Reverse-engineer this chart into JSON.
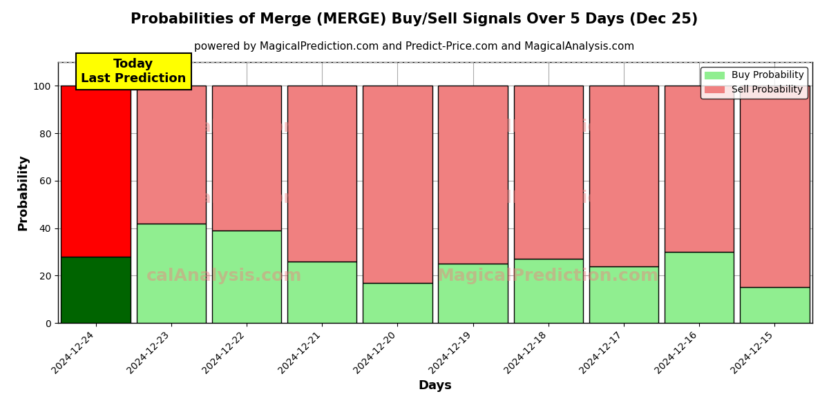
{
  "title": "Probabilities of Merge (MERGE) Buy/Sell Signals Over 5 Days (Dec 25)",
  "subtitle": "powered by MagicalPrediction.com and Predict-Price.com and MagicalAnalysis.com",
  "xlabel": "Days",
  "ylabel": "Probability",
  "categories": [
    "2024-12-24",
    "2024-12-23",
    "2024-12-22",
    "2024-12-21",
    "2024-12-20",
    "2024-12-19",
    "2024-12-18",
    "2024-12-17",
    "2024-12-16",
    "2024-12-15"
  ],
  "buy_values": [
    28,
    42,
    39,
    26,
    17,
    25,
    27,
    24,
    30,
    15
  ],
  "sell_values": [
    72,
    58,
    61,
    74,
    83,
    75,
    73,
    76,
    70,
    85
  ],
  "today_buy_color": "#006400",
  "today_sell_color": "#ff0000",
  "buy_color": "#90EE90",
  "sell_color": "#F08080",
  "today_index": 0,
  "bar_edge_color": "#000000",
  "bar_linewidth": 1.0,
  "ylim": [
    0,
    110
  ],
  "yticks": [
    0,
    20,
    40,
    60,
    80,
    100
  ],
  "dashed_line_y": 110,
  "watermark_line1": [
    "calAnalysis.com",
    "MagicalPrediction.com"
  ],
  "watermark_line2": [
    "calAnalysis.com",
    "MagicalPrediction.com"
  ],
  "watermark_line3": [
    "calAnalysis.com",
    "MagicalPrediction.com"
  ],
  "watermark_color": "#F08080",
  "watermark_alpha": 0.45,
  "today_label_text": "Today\nLast Prediction",
  "today_label_bg": "#ffff00",
  "legend_buy_label": "Buy Probability",
  "legend_sell_label": "Sell Probability",
  "grid_color": "#aaaaaa",
  "background_color": "#ffffff",
  "title_fontsize": 15,
  "subtitle_fontsize": 11,
  "axis_label_fontsize": 13,
  "tick_fontsize": 10,
  "bar_width": 0.92
}
